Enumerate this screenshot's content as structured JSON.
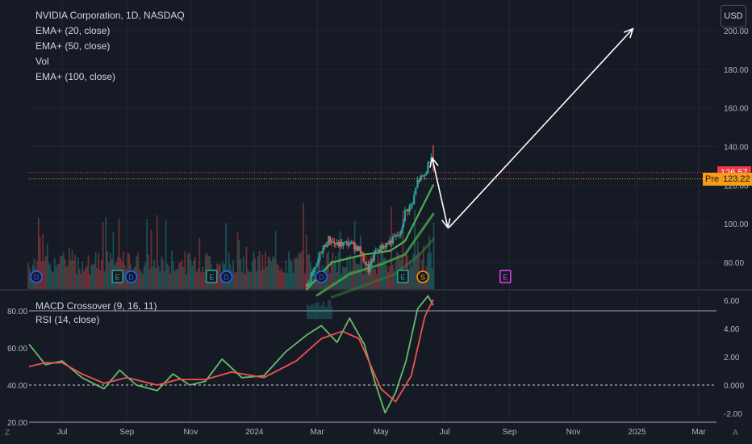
{
  "header": {
    "title": "NVIDIA Corporation, 1D, NASDAQ",
    "indicators": [
      "EMA+ (20, close)",
      "EMA+ (50, close)",
      "Vol",
      "EMA+ (100, close)"
    ]
  },
  "sub_panel": {
    "indicators": [
      "MACD Crossover (9, 16, 11)",
      "RSI (14, close)"
    ]
  },
  "currency_button": "USD",
  "price_labels": {
    "last_price": "126.57",
    "pre_label": "Pre",
    "pre_price": "123.22"
  },
  "corner_labels": {
    "left": "Z",
    "right": "A"
  },
  "colors": {
    "background": "#161a25",
    "grid": "#232632",
    "up": "#26a69a",
    "down": "#ef5350",
    "ema20": "#4caf50",
    "ema50": "#43a047",
    "ema100": "#2e7d32",
    "last_price_tag": "#f23645",
    "pre_tag": "#f59c1a",
    "rsi": "#66bb6a",
    "macd_signal": "#ef5350",
    "arrows": "#ffffff",
    "event_dividend": "#2962ff",
    "event_earnings": "#26a69a",
    "event_split": "#ff9800",
    "event_future_earnings": "#e040fb"
  },
  "chart_data": [
    {
      "type": "candlestick",
      "title": "NVIDIA Corporation, 1D, NASDAQ",
      "x_ticks": [
        "Jul",
        "Sep",
        "Nov",
        "2024",
        "Mar",
        "May",
        "Jul",
        "Sep",
        "Nov",
        "2025",
        "Mar"
      ],
      "y_ticks": [
        "80.00",
        "100.00",
        "120.00",
        "140.00",
        "160.00",
        "180.00",
        "200.00"
      ],
      "ylim": [
        68,
        206
      ],
      "last_price": 126.57,
      "pre_market_price": 123.22,
      "close_path": [
        {
          "x": "2024-02-20",
          "y": 69
        },
        {
          "x": "2024-02-28",
          "y": 76
        },
        {
          "x": "2024-03-05",
          "y": 86
        },
        {
          "x": "2024-03-08",
          "y": 88
        },
        {
          "x": "2024-03-12",
          "y": 92
        },
        {
          "x": "2024-03-20",
          "y": 89
        },
        {
          "x": "2024-04-01",
          "y": 90
        },
        {
          "x": "2024-04-10",
          "y": 87
        },
        {
          "x": "2024-04-19",
          "y": 76
        },
        {
          "x": "2024-04-26",
          "y": 86
        },
        {
          "x": "2024-05-08",
          "y": 90
        },
        {
          "x": "2024-05-20",
          "y": 95
        },
        {
          "x": "2024-05-24",
          "y": 106
        },
        {
          "x": "2024-05-31",
          "y": 110
        },
        {
          "x": "2024-06-05",
          "y": 122
        },
        {
          "x": "2024-06-12",
          "y": 125
        },
        {
          "x": "2024-06-18",
          "y": 136
        },
        {
          "x": "2024-06-20",
          "y": 131
        }
      ],
      "series": [
        {
          "name": "EMA+ (20, close)",
          "points": [
            {
              "x": "2024-02-20",
              "y": 66
            },
            {
              "x": "2024-03-15",
              "y": 80
            },
            {
              "x": "2024-04-15",
              "y": 84
            },
            {
              "x": "2024-05-10",
              "y": 86
            },
            {
              "x": "2024-05-24",
              "y": 91
            },
            {
              "x": "2024-06-07",
              "y": 106
            },
            {
              "x": "2024-06-20",
              "y": 120
            }
          ]
        },
        {
          "name": "EMA+ (50, close)",
          "points": [
            {
              "x": "2024-03-01",
              "y": 63
            },
            {
              "x": "2024-04-01",
              "y": 74
            },
            {
              "x": "2024-05-01",
              "y": 79
            },
            {
              "x": "2024-05-24",
              "y": 84
            },
            {
              "x": "2024-06-07",
              "y": 95
            },
            {
              "x": "2024-06-20",
              "y": 105
            }
          ]
        },
        {
          "name": "EMA+ (100, close)",
          "points": [
            {
              "x": "2024-03-15",
              "y": 62
            },
            {
              "x": "2024-04-15",
              "y": 68
            },
            {
              "x": "2024-05-15",
              "y": 74
            },
            {
              "x": "2024-06-07",
              "y": 84
            },
            {
              "x": "2024-06-20",
              "y": 92
            }
          ]
        }
      ],
      "annotations": [
        {
          "type": "arrow",
          "from": {
            "x": "2024-06-19",
            "y": 134
          },
          "to": {
            "x": "2024-07-04",
            "y": 98
          }
        },
        {
          "type": "arrow",
          "from": {
            "x": "2024-07-05",
            "y": 98
          },
          "to": {
            "x": "2024-12-28",
            "y": 201
          }
        }
      ],
      "events": [
        {
          "label": "D",
          "kind": "dividend",
          "x": "2023-06-07"
        },
        {
          "label": "E",
          "kind": "earnings",
          "x": "2023-08-23"
        },
        {
          "label": "D",
          "kind": "dividend",
          "x": "2023-09-05"
        },
        {
          "label": "E",
          "kind": "earnings",
          "x": "2023-11-21"
        },
        {
          "label": "D",
          "kind": "dividend",
          "x": "2023-12-05"
        },
        {
          "label": "D",
          "kind": "dividend",
          "x": "2024-03-05"
        },
        {
          "label": "E",
          "kind": "earnings",
          "x": "2024-05-22"
        },
        {
          "label": "S",
          "kind": "split",
          "x": "2024-06-10"
        },
        {
          "label": "E",
          "kind": "earnings",
          "x": "2024-08-28"
        }
      ]
    },
    {
      "type": "line",
      "series": [
        {
          "name": "RSI (14, close)",
          "points": [
            {
              "x": "2023-06-01",
              "y": 62
            },
            {
              "x": "2023-06-15",
              "y": 51
            },
            {
              "x": "2023-07-01",
              "y": 53
            },
            {
              "x": "2023-07-20",
              "y": 44
            },
            {
              "x": "2023-08-10",
              "y": 38
            },
            {
              "x": "2023-08-25",
              "y": 48
            },
            {
              "x": "2023-09-10",
              "y": 40
            },
            {
              "x": "2023-09-30",
              "y": 37
            },
            {
              "x": "2023-10-15",
              "y": 46
            },
            {
              "x": "2023-10-31",
              "y": 40
            },
            {
              "x": "2023-11-15",
              "y": 42
            },
            {
              "x": "2023-12-01",
              "y": 54
            },
            {
              "x": "2023-12-20",
              "y": 44
            },
            {
              "x": "2024-01-10",
              "y": 45
            },
            {
              "x": "2024-01-31",
              "y": 58
            },
            {
              "x": "2024-02-20",
              "y": 67
            },
            {
              "x": "2024-03-05",
              "y": 72
            },
            {
              "x": "2024-03-20",
              "y": 63
            },
            {
              "x": "2024-04-01",
              "y": 76
            },
            {
              "x": "2024-04-15",
              "y": 62
            },
            {
              "x": "2024-04-25",
              "y": 42
            },
            {
              "x": "2024-05-05",
              "y": 25
            },
            {
              "x": "2024-05-15",
              "y": 36
            },
            {
              "x": "2024-05-25",
              "y": 53
            },
            {
              "x": "2024-06-05",
              "y": 81
            },
            {
              "x": "2024-06-15",
              "y": 88
            },
            {
              "x": "2024-06-20",
              "y": 83
            }
          ]
        },
        {
          "name": "MACD Crossover (9, 16, 11)",
          "points": [
            {
              "x": "2023-06-01",
              "y": 50
            },
            {
              "x": "2023-06-15",
              "y": 52
            },
            {
              "x": "2023-07-01",
              "y": 52
            },
            {
              "x": "2023-07-20",
              "y": 46
            },
            {
              "x": "2023-08-10",
              "y": 41
            },
            {
              "x": "2023-09-01",
              "y": 44
            },
            {
              "x": "2023-09-30",
              "y": 40
            },
            {
              "x": "2023-10-20",
              "y": 43
            },
            {
              "x": "2023-11-15",
              "y": 43
            },
            {
              "x": "2023-12-10",
              "y": 47
            },
            {
              "x": "2024-01-10",
              "y": 44
            },
            {
              "x": "2024-02-10",
              "y": 53
            },
            {
              "x": "2024-03-05",
              "y": 65
            },
            {
              "x": "2024-03-25",
              "y": 69
            },
            {
              "x": "2024-04-10",
              "y": 65
            },
            {
              "x": "2024-05-01",
              "y": 38
            },
            {
              "x": "2024-05-15",
              "y": 31
            },
            {
              "x": "2024-05-30",
              "y": 45
            },
            {
              "x": "2024-06-12",
              "y": 77
            },
            {
              "x": "2024-06-20",
              "y": 86
            }
          ]
        }
      ],
      "histogram_window": [
        "2024-02-20",
        "2024-03-15"
      ],
      "y_ticks_left": [
        "20.00",
        "40.00",
        "60.00",
        "80.00"
      ],
      "y_ticks_right": [
        "-2.00",
        "0.000",
        "2.00",
        "4.00",
        "6.00"
      ],
      "reference_lines": [
        80,
        40,
        20
      ]
    }
  ]
}
